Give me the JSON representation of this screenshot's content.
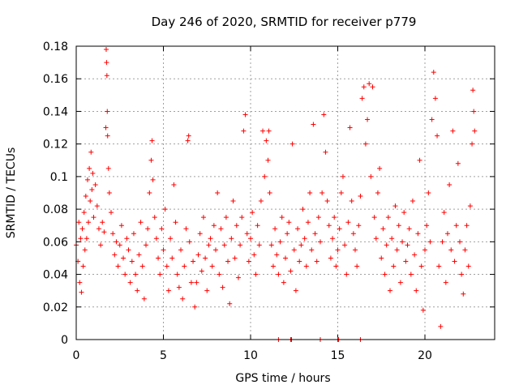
{
  "chart_data": {
    "type": "scatter",
    "title": "Day 246 of 2020, SRMTID for receiver p779",
    "xlabel": "GPS time / hours",
    "ylabel": "SRMTID / TECUs",
    "xlim": [
      0,
      24
    ],
    "ylim": [
      0,
      0.18
    ],
    "xticks": [
      0,
      5,
      10,
      15,
      20
    ],
    "xtick_labels": [
      "0",
      "5",
      "10",
      "15",
      "20"
    ],
    "yticks": [
      0,
      0.02,
      0.04,
      0.06,
      0.08,
      0.1,
      0.12,
      0.14,
      0.16,
      0.18
    ],
    "ytick_labels": [
      "0",
      "0.02",
      "0.04",
      "0.06",
      "0.08",
      "0.1",
      "0.12",
      "0.14",
      "0.16",
      "0.18"
    ],
    "grid": true,
    "marker": "+",
    "color": "#ff0000",
    "series": [
      {
        "name": "SRMTID",
        "points": [
          [
            0.0,
            0.058
          ],
          [
            0.1,
            0.048
          ],
          [
            0.15,
            0.072
          ],
          [
            0.2,
            0.035
          ],
          [
            0.25,
            0.062
          ],
          [
            0.3,
            0.029
          ],
          [
            0.35,
            0.068
          ],
          [
            0.4,
            0.045
          ],
          [
            0.45,
            0.078
          ],
          [
            0.5,
            0.055
          ],
          [
            0.55,
            0.088
          ],
          [
            0.6,
            0.062
          ],
          [
            0.65,
            0.098
          ],
          [
            0.7,
            0.072
          ],
          [
            0.75,
            0.105
          ],
          [
            0.8,
            0.085
          ],
          [
            0.85,
            0.115
          ],
          [
            0.9,
            0.092
          ],
          [
            0.95,
            0.102
          ],
          [
            1.0,
            0.075
          ],
          [
            1.1,
            0.095
          ],
          [
            1.2,
            0.082
          ],
          [
            1.3,
            0.068
          ],
          [
            1.4,
            0.058
          ],
          [
            1.5,
            0.072
          ],
          [
            1.6,
            0.066
          ],
          [
            1.7,
            0.13
          ],
          [
            1.72,
            0.178
          ],
          [
            1.74,
            0.17
          ],
          [
            1.76,
            0.162
          ],
          [
            1.78,
            0.14
          ],
          [
            1.8,
            0.125
          ],
          [
            1.85,
            0.105
          ],
          [
            1.9,
            0.09
          ],
          [
            2.0,
            0.078
          ],
          [
            2.1,
            0.065
          ],
          [
            2.2,
            0.052
          ],
          [
            2.3,
            0.06
          ],
          [
            2.4,
            0.045
          ],
          [
            2.5,
            0.058
          ],
          [
            2.6,
            0.07
          ],
          [
            2.7,
            0.05
          ],
          [
            2.8,
            0.04
          ],
          [
            2.9,
            0.062
          ],
          [
            3.0,
            0.055
          ],
          [
            3.1,
            0.035
          ],
          [
            3.2,
            0.048
          ],
          [
            3.3,
            0.065
          ],
          [
            3.4,
            0.04
          ],
          [
            3.5,
            0.03
          ],
          [
            3.6,
            0.052
          ],
          [
            3.7,
            0.072
          ],
          [
            3.8,
            0.045
          ],
          [
            3.9,
            0.025
          ],
          [
            4.0,
            0.058
          ],
          [
            4.1,
            0.068
          ],
          [
            4.2,
            0.09
          ],
          [
            4.3,
            0.11
          ],
          [
            4.35,
            0.122
          ],
          [
            4.4,
            0.098
          ],
          [
            4.5,
            0.075
          ],
          [
            4.6,
            0.062
          ],
          [
            4.7,
            0.05
          ],
          [
            4.8,
            0.04
          ],
          [
            4.9,
            0.068
          ],
          [
            5.0,
            0.055
          ],
          [
            5.1,
            0.08
          ],
          [
            5.2,
            0.045
          ],
          [
            5.3,
            0.03
          ],
          [
            5.4,
            0.062
          ],
          [
            5.5,
            0.05
          ],
          [
            5.6,
            0.095
          ],
          [
            5.7,
            0.072
          ],
          [
            5.8,
            0.04
          ],
          [
            5.9,
            0.032
          ],
          [
            6.0,
            0.055
          ],
          [
            6.1,
            0.025
          ],
          [
            6.2,
            0.045
          ],
          [
            6.3,
            0.068
          ],
          [
            6.4,
            0.122
          ],
          [
            6.45,
            0.125
          ],
          [
            6.5,
            0.06
          ],
          [
            6.6,
            0.035
          ],
          [
            6.7,
            0.048
          ],
          [
            6.8,
            0.02
          ],
          [
            6.9,
            0.035
          ],
          [
            7.0,
            0.052
          ],
          [
            7.1,
            0.065
          ],
          [
            7.2,
            0.042
          ],
          [
            7.3,
            0.075
          ],
          [
            7.4,
            0.05
          ],
          [
            7.5,
            0.03
          ],
          [
            7.6,
            0.058
          ],
          [
            7.7,
            0.062
          ],
          [
            7.8,
            0.045
          ],
          [
            7.9,
            0.07
          ],
          [
            8.0,
            0.055
          ],
          [
            8.1,
            0.09
          ],
          [
            8.2,
            0.04
          ],
          [
            8.3,
            0.068
          ],
          [
            8.4,
            0.032
          ],
          [
            8.5,
            0.058
          ],
          [
            8.6,
            0.075
          ],
          [
            8.7,
            0.048
          ],
          [
            8.8,
            0.022
          ],
          [
            8.9,
            0.062
          ],
          [
            9.0,
            0.085
          ],
          [
            9.1,
            0.05
          ],
          [
            9.2,
            0.07
          ],
          [
            9.3,
            0.038
          ],
          [
            9.4,
            0.058
          ],
          [
            9.5,
            0.075
          ],
          [
            9.6,
            0.128
          ],
          [
            9.7,
            0.138
          ],
          [
            9.8,
            0.065
          ],
          [
            9.9,
            0.048
          ],
          [
            10.0,
            0.062
          ],
          [
            10.1,
            0.078
          ],
          [
            10.2,
            0.052
          ],
          [
            10.3,
            0.04
          ],
          [
            10.4,
            0.07
          ],
          [
            10.5,
            0.058
          ],
          [
            10.6,
            0.085
          ],
          [
            10.7,
            0.128
          ],
          [
            10.8,
            0.1
          ],
          [
            10.9,
            0.122
          ],
          [
            11.0,
            0.11
          ],
          [
            11.05,
            0.128
          ],
          [
            11.1,
            0.09
          ],
          [
            11.2,
            0.058
          ],
          [
            11.3,
            0.045
          ],
          [
            11.4,
            0.068
          ],
          [
            11.5,
            0.052
          ],
          [
            11.6,
            0.04
          ],
          [
            11.7,
            0.06
          ],
          [
            11.8,
            0.075
          ],
          [
            11.9,
            0.035
          ],
          [
            12.0,
            0.05
          ],
          [
            12.1,
            0.065
          ],
          [
            12.2,
            0.072
          ],
          [
            12.3,
            0.042
          ],
          [
            12.4,
            0.12
          ],
          [
            12.5,
            0.055
          ],
          [
            12.6,
            0.03
          ],
          [
            12.7,
            0.068
          ],
          [
            12.8,
            0.048
          ],
          [
            12.9,
            0.058
          ],
          [
            13.0,
            0.08
          ],
          [
            13.1,
            0.062
          ],
          [
            13.2,
            0.045
          ],
          [
            13.3,
            0.072
          ],
          [
            13.4,
            0.09
          ],
          [
            13.5,
            0.055
          ],
          [
            13.6,
            0.132
          ],
          [
            13.7,
            0.065
          ],
          [
            13.8,
            0.048
          ],
          [
            13.9,
            0.075
          ],
          [
            14.0,
            0.06
          ],
          [
            14.1,
            0.09
          ],
          [
            14.2,
            0.138
          ],
          [
            14.3,
            0.115
          ],
          [
            14.4,
            0.085
          ],
          [
            14.5,
            0.07
          ],
          [
            14.6,
            0.05
          ],
          [
            14.7,
            0.062
          ],
          [
            14.8,
            0.075
          ],
          [
            14.9,
            0.045
          ],
          [
            15.0,
            0.055
          ],
          [
            15.1,
            0.068
          ],
          [
            15.2,
            0.09
          ],
          [
            15.3,
            0.1
          ],
          [
            15.4,
            0.058
          ],
          [
            15.5,
            0.04
          ],
          [
            15.6,
            0.072
          ],
          [
            15.7,
            0.13
          ],
          [
            15.8,
            0.085
          ],
          [
            15.9,
            0.065
          ],
          [
            16.0,
            0.055
          ],
          [
            16.1,
            0.045
          ],
          [
            16.2,
            0.07
          ],
          [
            16.3,
            0.088
          ],
          [
            16.4,
            0.148
          ],
          [
            16.5,
            0.155
          ],
          [
            16.6,
            0.12
          ],
          [
            16.7,
            0.135
          ],
          [
            16.8,
            0.157
          ],
          [
            16.9,
            0.1
          ],
          [
            17.0,
            0.155
          ],
          [
            17.1,
            0.075
          ],
          [
            17.2,
            0.062
          ],
          [
            17.3,
            0.09
          ],
          [
            17.4,
            0.105
          ],
          [
            17.5,
            0.05
          ],
          [
            17.6,
            0.068
          ],
          [
            17.7,
            0.04
          ],
          [
            17.8,
            0.058
          ],
          [
            17.9,
            0.075
          ],
          [
            18.0,
            0.03
          ],
          [
            18.1,
            0.062
          ],
          [
            18.2,
            0.045
          ],
          [
            18.3,
            0.082
          ],
          [
            18.4,
            0.055
          ],
          [
            18.5,
            0.07
          ],
          [
            18.6,
            0.035
          ],
          [
            18.7,
            0.06
          ],
          [
            18.8,
            0.078
          ],
          [
            18.9,
            0.048
          ],
          [
            19.0,
            0.058
          ],
          [
            19.1,
            0.068
          ],
          [
            19.2,
            0.04
          ],
          [
            19.3,
            0.085
          ],
          [
            19.4,
            0.052
          ],
          [
            19.5,
            0.03
          ],
          [
            19.6,
            0.065
          ],
          [
            19.7,
            0.11
          ],
          [
            19.8,
            0.045
          ],
          [
            19.9,
            0.018
          ],
          [
            20.0,
            0.055
          ],
          [
            20.1,
            0.07
          ],
          [
            20.2,
            0.09
          ],
          [
            20.3,
            0.06
          ],
          [
            20.4,
            0.135
          ],
          [
            20.5,
            0.164
          ],
          [
            20.6,
            0.148
          ],
          [
            20.7,
            0.125
          ],
          [
            20.8,
            0.045
          ],
          [
            20.9,
            0.008
          ],
          [
            21.0,
            0.06
          ],
          [
            21.1,
            0.078
          ],
          [
            21.2,
            0.035
          ],
          [
            21.3,
            0.065
          ],
          [
            21.4,
            0.095
          ],
          [
            21.5,
            0.055
          ],
          [
            21.6,
            0.128
          ],
          [
            21.7,
            0.048
          ],
          [
            21.8,
            0.07
          ],
          [
            21.9,
            0.108
          ],
          [
            22.0,
            0.06
          ],
          [
            22.1,
            0.04
          ],
          [
            22.2,
            0.028
          ],
          [
            22.3,
            0.055
          ],
          [
            22.4,
            0.07
          ],
          [
            22.5,
            0.045
          ],
          [
            22.6,
            0.082
          ],
          [
            22.7,
            0.12
          ],
          [
            22.75,
            0.153
          ],
          [
            22.8,
            0.14
          ],
          [
            22.85,
            0.128
          ],
          [
            12.3,
            0.0
          ],
          [
            14.0,
            0.0
          ],
          [
            15.0,
            0.0
          ],
          [
            11.6,
            0.0
          ],
          [
            16.3,
            0.0
          ],
          [
            12.35,
            0.0
          ],
          [
            15.05,
            0.0
          ]
        ]
      }
    ]
  }
}
